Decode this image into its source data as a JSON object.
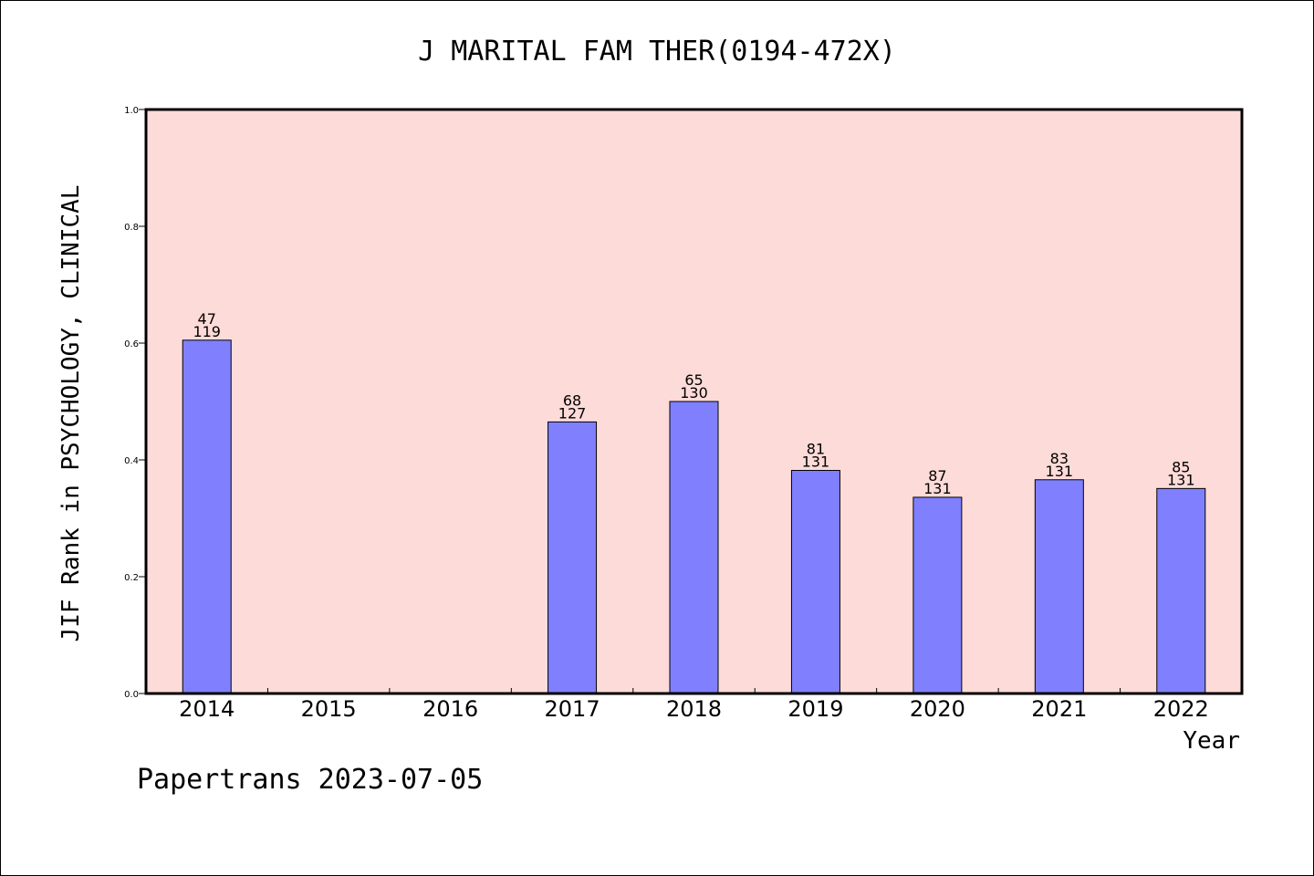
{
  "chart_data": {
    "type": "bar",
    "title": "J MARITAL FAM THER(0194-472X)",
    "xlabel": "Year",
    "ylabel": "JIF Rank in PSYCHOLOGY, CLINICAL",
    "ylim": [
      0.0,
      1.0
    ],
    "yticks": [
      "0.0",
      "0.2",
      "0.4",
      "0.6",
      "0.8",
      "1.0"
    ],
    "categories": [
      "2014",
      "2015",
      "2016",
      "2017",
      "2018",
      "2019",
      "2020",
      "2021",
      "2022"
    ],
    "values": [
      0.605,
      null,
      null,
      0.465,
      0.5,
      0.382,
      0.336,
      0.366,
      0.351
    ],
    "rank": [
      "47",
      "",
      "",
      "68",
      "65",
      "81",
      "87",
      "83",
      "85"
    ],
    "total": [
      "119",
      "",
      "",
      "127",
      "130",
      "131",
      "131",
      "131",
      "131"
    ],
    "grid": false,
    "colors": {
      "plot_background": "#FDDBD8",
      "bar_fill": "#8080FF",
      "bar_stroke": "#000000"
    }
  },
  "footer": {
    "text": "Papertrans 2023-07-05"
  }
}
